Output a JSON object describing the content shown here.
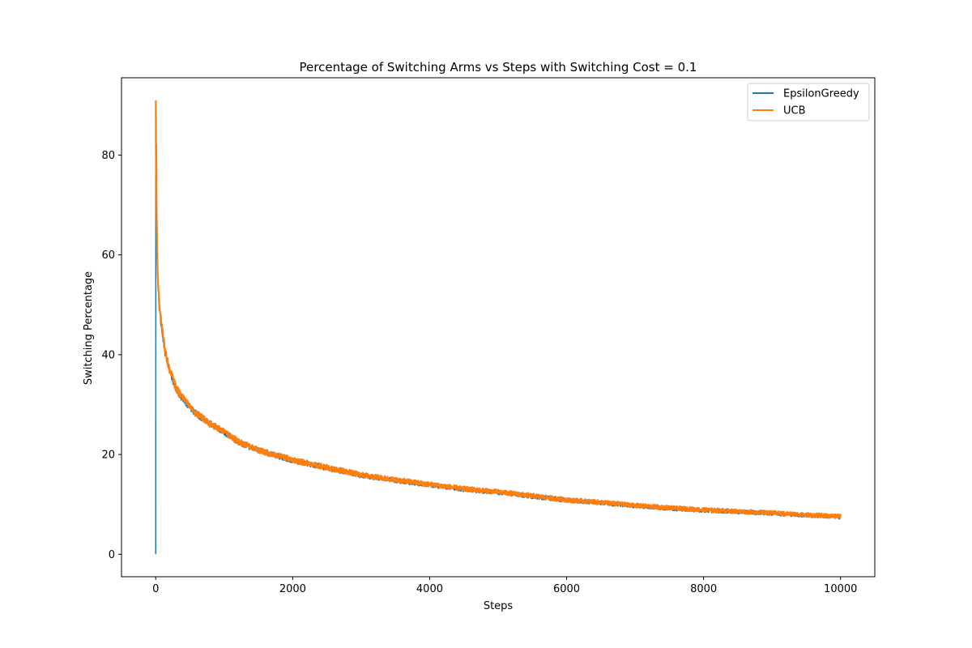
{
  "chart_data": {
    "type": "line",
    "title": "Percentage of Switching Arms vs Steps with Switching Cost = 0.1",
    "xlabel": "Steps",
    "ylabel": "Switching Percentage",
    "xlim": [
      -500,
      10500
    ],
    "ylim": [
      -4.5,
      95.5
    ],
    "xticks": [
      0,
      2000,
      4000,
      6000,
      8000,
      10000
    ],
    "yticks": [
      0,
      20,
      40,
      60,
      80
    ],
    "grid": false,
    "legend_position": "top-right",
    "series": [
      {
        "name": "EpsilonGreedy",
        "color": "#1f77b4",
        "x": [
          0,
          1,
          2,
          3,
          5,
          8,
          12,
          18,
          25,
          35,
          50,
          70,
          100,
          130,
          160,
          200,
          250,
          300,
          400,
          500,
          600,
          700,
          800,
          1000,
          1200,
          1500,
          1800,
          2000,
          2500,
          3000,
          3500,
          4000,
          4500,
          5000,
          5500,
          6000,
          6500,
          7000,
          7500,
          8000,
          8500,
          9000,
          9500,
          10000
        ],
        "y": [
          0,
          88,
          70,
          85,
          72,
          78,
          65,
          62,
          57,
          53,
          50,
          47,
          44,
          41,
          39,
          37,
          35,
          33,
          31,
          29.5,
          28,
          27,
          26,
          24.5,
          22.5,
          20.8,
          19.6,
          18.8,
          17.3,
          15.8,
          14.8,
          13.9,
          13.0,
          12.4,
          11.6,
          10.8,
          10.3,
          9.7,
          9.2,
          8.8,
          8.5,
          8.2,
          7.8,
          7.5
        ]
      },
      {
        "name": "UCB",
        "color": "#ff7f0e",
        "x": [
          1,
          2,
          3,
          5,
          8,
          12,
          18,
          25,
          35,
          50,
          70,
          100,
          130,
          160,
          200,
          250,
          300,
          400,
          500,
          600,
          700,
          800,
          1000,
          1200,
          1500,
          1800,
          2000,
          2500,
          3000,
          3500,
          4000,
          4500,
          5000,
          5500,
          6000,
          6500,
          7000,
          7500,
          8000,
          8500,
          9000,
          9500,
          10000
        ],
        "y": [
          91,
          80,
          88,
          76,
          82,
          70,
          64,
          58,
          54,
          50.5,
          47.5,
          44.5,
          41.5,
          39.5,
          37,
          35.2,
          33.2,
          31.2,
          29.6,
          28.1,
          27.1,
          26.1,
          24.6,
          22.6,
          20.9,
          19.7,
          18.9,
          17.4,
          15.9,
          14.9,
          14.0,
          13.1,
          12.5,
          11.7,
          10.9,
          10.4,
          9.8,
          9.3,
          8.9,
          8.6,
          8.3,
          7.9,
          7.6
        ]
      }
    ]
  }
}
